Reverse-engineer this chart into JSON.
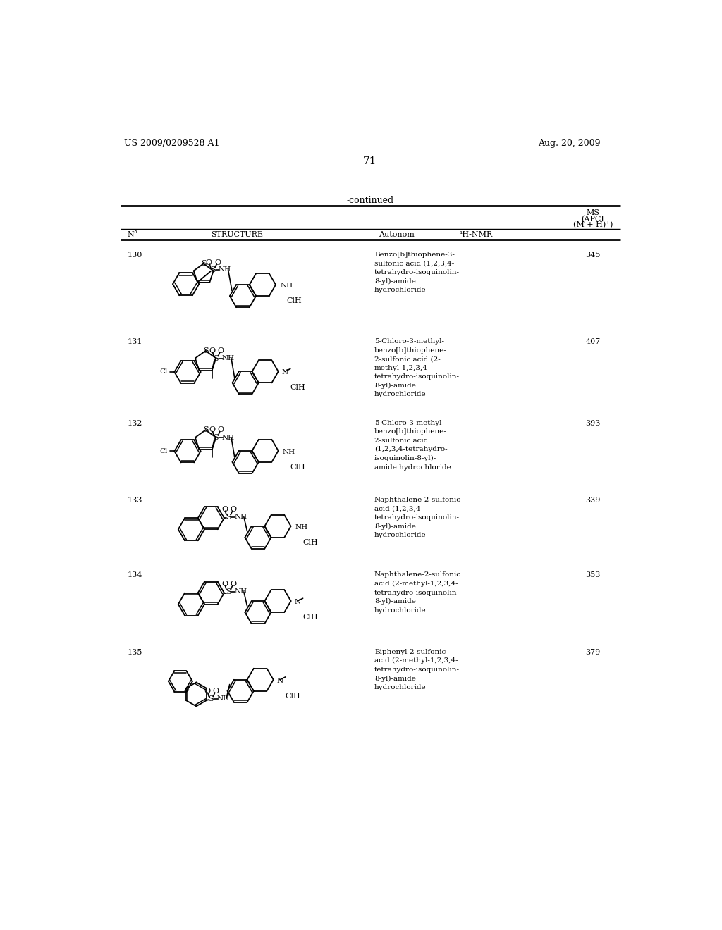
{
  "page_number": "71",
  "patent_number": "US 2009/0209528 A1",
  "patent_date": "Aug. 20, 2009",
  "continued_label": "-continued",
  "col_no": "N°",
  "col_structure": "STRUCTURE",
  "col_autonom": "Autonom",
  "col_hnmr": "¹H-NMR",
  "col_ms_line1": "MS",
  "col_ms_line2": "(APCI",
  "col_ms_line3": "(M + H)⁺)",
  "rows": [
    {
      "no": "130",
      "autonom": "Benzo[b]thiophene-3-\nsulfonic acid (1,2,3,4-\ntetrahydro-isoquinolin-\n8-yl)-amide\nhydrochloride",
      "ms": "345",
      "clh": "ClH"
    },
    {
      "no": "131",
      "autonom": "5-Chloro-3-methyl-\nbenzo[b]thiophene-\n2-sulfonic acid (2-\nmethyl-1,2,3,4-\ntetrahydro-isoquinolin-\n8-yl)-amide\nhydrochloride",
      "ms": "407",
      "clh": "ClH"
    },
    {
      "no": "132",
      "autonom": "5-Chloro-3-methyl-\nbenzo[b]thiophene-\n2-sulfonic acid\n(1,2,3,4-tetrahydro-\nisoquinolin-8-yl)-\namide hydrochloride",
      "ms": "393",
      "clh": "ClH"
    },
    {
      "no": "133",
      "autonom": "Naphthalene-2-sulfonic\nacid (1,2,3,4-\ntetrahydro-isoquinolin-\n8-yl)-amide\nhydrochloride",
      "ms": "339",
      "clh": "ClH"
    },
    {
      "no": "134",
      "autonom": "Naphthalene-2-sulfonic\nacid (2-methyl-1,2,3,4-\ntetrahydro-isoquinolin-\n8-yl)-amide\nhydrochloride",
      "ms": "353",
      "clh": "ClH"
    },
    {
      "no": "135",
      "autonom": "Biphenyl-2-sulfonic\nacid (2-methyl-1,2,3,4-\ntetrahydro-isoquinolin-\n8-yl)-amide\nhydrochloride",
      "ms": "379",
      "clh": "ClH"
    }
  ]
}
